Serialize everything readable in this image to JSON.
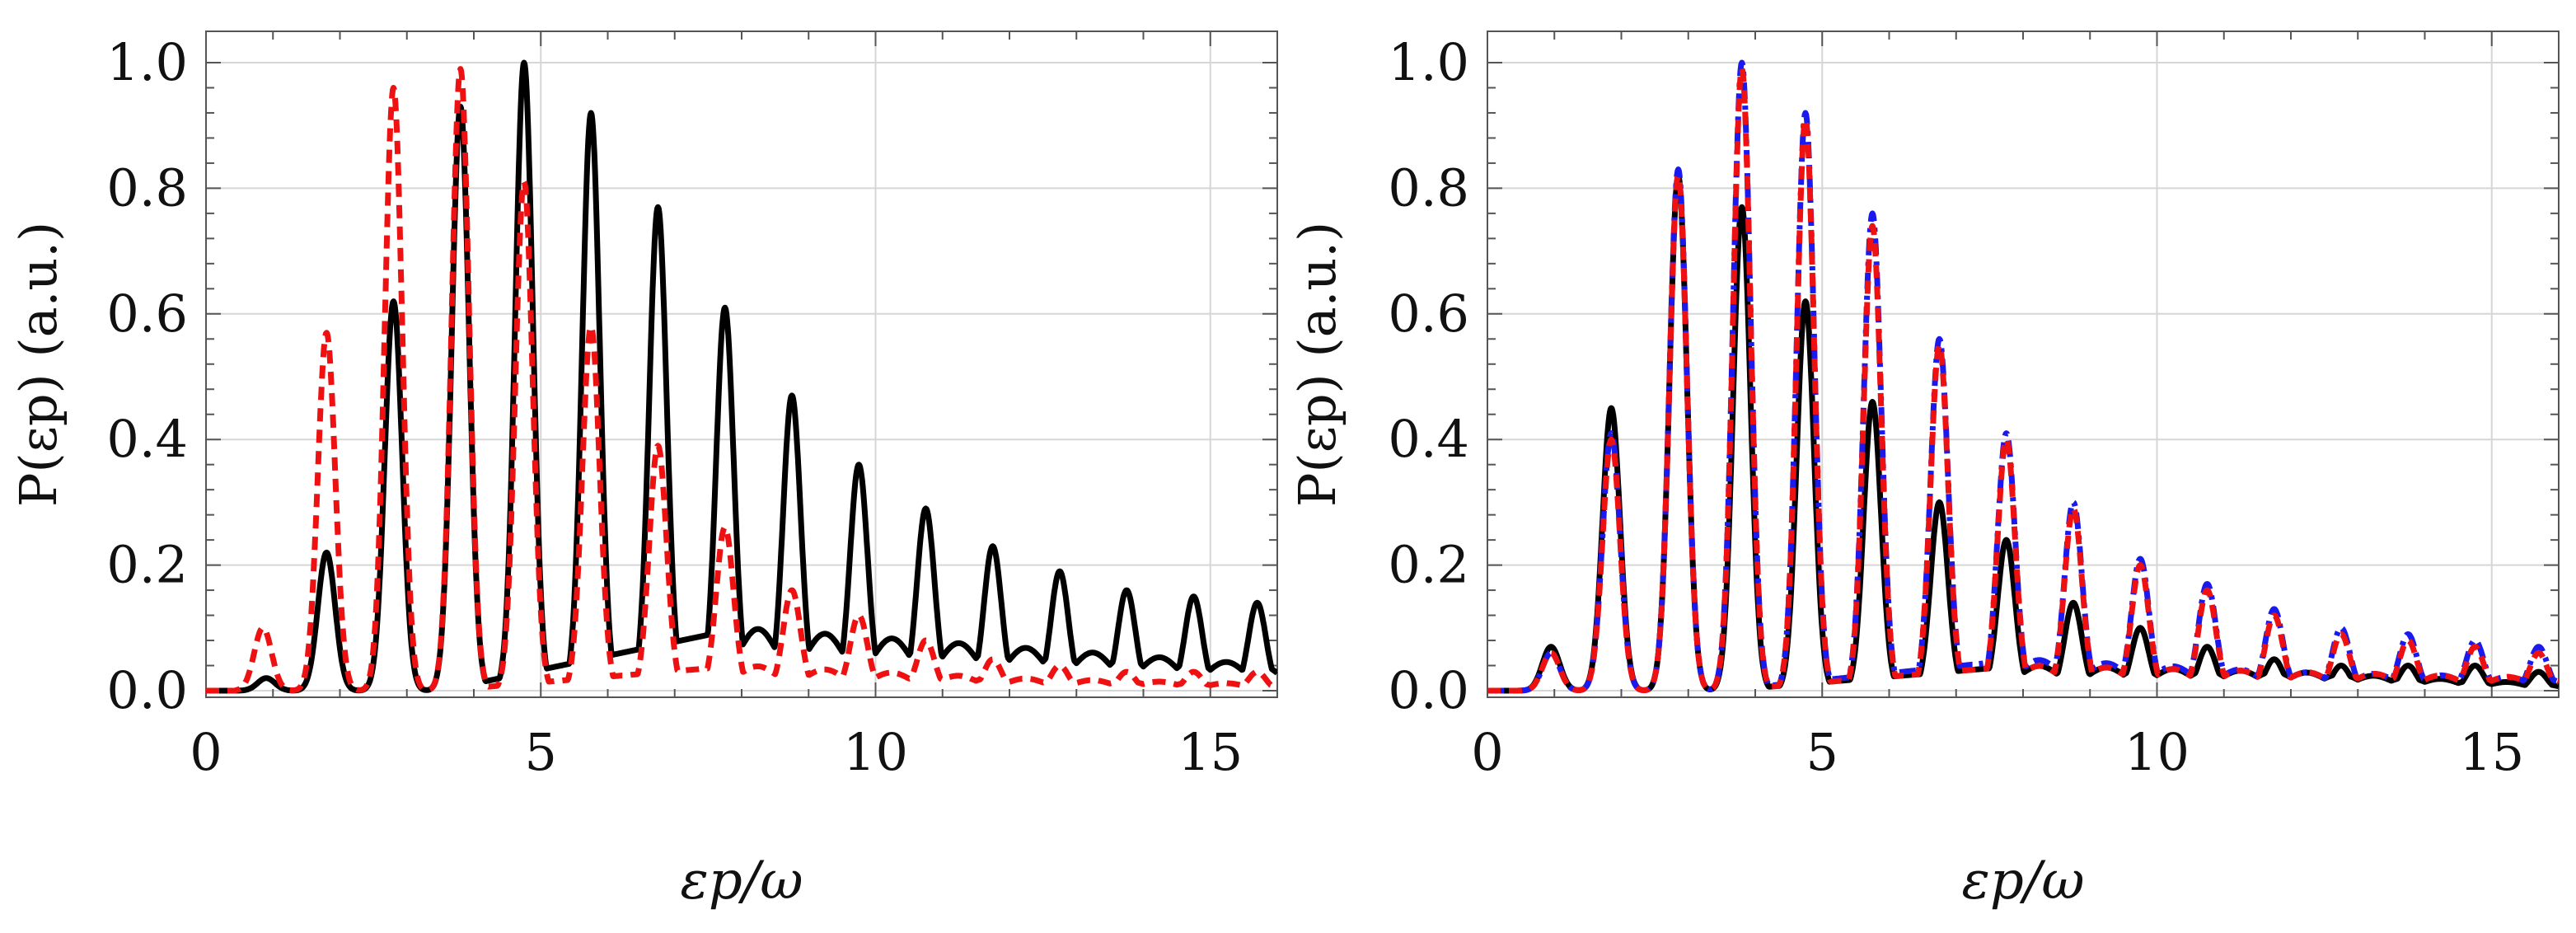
{
  "chart_data": [
    {
      "type": "line",
      "panel": "left",
      "xlabel": "εp/ω",
      "ylabel": "P(εp) (a.u.)",
      "xlim": [
        0,
        16
      ],
      "ylim": [
        0,
        1.0
      ],
      "xticks": [
        0,
        5,
        10,
        15
      ],
      "xtick_labels": [
        "0",
        "5",
        "10",
        "15"
      ],
      "yticks": [
        0.0,
        0.2,
        0.4,
        0.6,
        0.8,
        1.0
      ],
      "ytick_labels": [
        "0.0",
        "0.2",
        "0.4",
        "0.6",
        "0.8",
        "1.0"
      ],
      "grid": true,
      "series": [
        {
          "name": "solid-black",
          "color": "#000000",
          "dash": "solid",
          "peaks": [
            {
              "x": 0.9,
              "y": 0.02
            },
            {
              "x": 1.8,
              "y": 0.22
            },
            {
              "x": 2.8,
              "y": 0.62
            },
            {
              "x": 3.8,
              "y": 0.93
            },
            {
              "x": 4.75,
              "y": 1.0
            },
            {
              "x": 5.75,
              "y": 0.92
            },
            {
              "x": 6.75,
              "y": 0.77
            },
            {
              "x": 7.75,
              "y": 0.61
            },
            {
              "x": 8.75,
              "y": 0.47
            },
            {
              "x": 9.75,
              "y": 0.36
            },
            {
              "x": 10.75,
              "y": 0.29
            },
            {
              "x": 11.75,
              "y": 0.23
            },
            {
              "x": 12.75,
              "y": 0.19
            },
            {
              "x": 13.75,
              "y": 0.16
            },
            {
              "x": 14.75,
              "y": 0.15
            },
            {
              "x": 15.7,
              "y": 0.14
            }
          ],
          "floor": [
            {
              "x": 8.0,
              "y": 0.1
            },
            {
              "x": 12.0,
              "y": 0.07
            },
            {
              "x": 16.0,
              "y": 0.04
            }
          ]
        },
        {
          "name": "dashed-red",
          "color": "#ee1111",
          "dash": "dashed",
          "peaks": [
            {
              "x": 0.85,
              "y": 0.1
            },
            {
              "x": 1.8,
              "y": 0.57
            },
            {
              "x": 2.8,
              "y": 0.96
            },
            {
              "x": 3.8,
              "y": 0.99
            },
            {
              "x": 4.75,
              "y": 0.81
            },
            {
              "x": 5.75,
              "y": 0.58
            },
            {
              "x": 6.75,
              "y": 0.39
            },
            {
              "x": 7.75,
              "y": 0.26
            },
            {
              "x": 8.75,
              "y": 0.16
            },
            {
              "x": 9.75,
              "y": 0.12
            },
            {
              "x": 10.75,
              "y": 0.08
            },
            {
              "x": 11.75,
              "y": 0.05
            },
            {
              "x": 12.75,
              "y": 0.04
            },
            {
              "x": 13.75,
              "y": 0.03
            },
            {
              "x": 14.75,
              "y": 0.03
            },
            {
              "x": 15.7,
              "y": 0.03
            }
          ],
          "floor": [
            {
              "x": 8.0,
              "y": 0.04
            },
            {
              "x": 12.0,
              "y": 0.02
            },
            {
              "x": 16.0,
              "y": 0.01
            }
          ]
        }
      ]
    },
    {
      "type": "line",
      "panel": "right",
      "xlabel": "εp/ω",
      "ylabel": "P(εp) (a.u.)",
      "xlim": [
        0,
        16
      ],
      "ylim": [
        0,
        1.0
      ],
      "xticks": [
        0,
        5,
        10,
        15
      ],
      "xtick_labels": [
        "0",
        "5",
        "10",
        "15"
      ],
      "yticks": [
        0.0,
        0.2,
        0.4,
        0.6,
        0.8,
        1.0
      ],
      "ytick_labels": [
        "0.0",
        "0.2",
        "0.4",
        "0.6",
        "0.8",
        "1.0"
      ],
      "grid": true,
      "series": [
        {
          "name": "solid-black",
          "color": "#000000",
          "dash": "solid",
          "peaks": [
            {
              "x": 0.95,
              "y": 0.07
            },
            {
              "x": 1.85,
              "y": 0.45
            },
            {
              "x": 2.85,
              "y": 0.82
            },
            {
              "x": 3.8,
              "y": 0.77
            },
            {
              "x": 4.75,
              "y": 0.62
            },
            {
              "x": 5.75,
              "y": 0.46
            },
            {
              "x": 6.75,
              "y": 0.3
            },
            {
              "x": 7.75,
              "y": 0.24
            },
            {
              "x": 8.75,
              "y": 0.14
            },
            {
              "x": 9.75,
              "y": 0.1
            },
            {
              "x": 10.75,
              "y": 0.07
            },
            {
              "x": 11.75,
              "y": 0.05
            },
            {
              "x": 12.75,
              "y": 0.04
            },
            {
              "x": 13.75,
              "y": 0.04
            },
            {
              "x": 14.75,
              "y": 0.04
            },
            {
              "x": 15.7,
              "y": 0.03
            }
          ],
          "floor": [
            {
              "x": 8.0,
              "y": 0.04
            },
            {
              "x": 12.0,
              "y": 0.03
            },
            {
              "x": 16.0,
              "y": 0.01
            }
          ]
        },
        {
          "name": "dash-dot-blue",
          "color": "#1a1aee",
          "dash": "dashdot",
          "peaks": [
            {
              "x": 0.95,
              "y": 0.06
            },
            {
              "x": 1.85,
              "y": 0.41
            },
            {
              "x": 2.85,
              "y": 0.83
            },
            {
              "x": 3.8,
              "y": 1.0
            },
            {
              "x": 4.75,
              "y": 0.92
            },
            {
              "x": 5.75,
              "y": 0.76
            },
            {
              "x": 6.75,
              "y": 0.56
            },
            {
              "x": 7.75,
              "y": 0.41
            },
            {
              "x": 8.75,
              "y": 0.3
            },
            {
              "x": 9.75,
              "y": 0.21
            },
            {
              "x": 10.75,
              "y": 0.17
            },
            {
              "x": 11.75,
              "y": 0.13
            },
            {
              "x": 12.75,
              "y": 0.1
            },
            {
              "x": 13.75,
              "y": 0.09
            },
            {
              "x": 14.75,
              "y": 0.08
            },
            {
              "x": 15.7,
              "y": 0.07
            }
          ],
          "floor": [
            {
              "x": 8.0,
              "y": 0.05
            },
            {
              "x": 12.0,
              "y": 0.03
            },
            {
              "x": 16.0,
              "y": 0.02
            }
          ]
        },
        {
          "name": "dashed-red",
          "color": "#ee1111",
          "dash": "dashed",
          "peaks": [
            {
              "x": 0.95,
              "y": 0.06
            },
            {
              "x": 1.85,
              "y": 0.4
            },
            {
              "x": 2.85,
              "y": 0.82
            },
            {
              "x": 3.8,
              "y": 0.99
            },
            {
              "x": 4.75,
              "y": 0.91
            },
            {
              "x": 5.75,
              "y": 0.74
            },
            {
              "x": 6.75,
              "y": 0.55
            },
            {
              "x": 7.75,
              "y": 0.4
            },
            {
              "x": 8.75,
              "y": 0.29
            },
            {
              "x": 9.75,
              "y": 0.2
            },
            {
              "x": 10.75,
              "y": 0.16
            },
            {
              "x": 11.75,
              "y": 0.12
            },
            {
              "x": 12.75,
              "y": 0.09
            },
            {
              "x": 13.75,
              "y": 0.08
            },
            {
              "x": 14.75,
              "y": 0.07
            },
            {
              "x": 15.7,
              "y": 0.06
            }
          ],
          "floor": [
            {
              "x": 8.0,
              "y": 0.04
            },
            {
              "x": 12.0,
              "y": 0.03
            },
            {
              "x": 16.0,
              "y": 0.02
            }
          ]
        }
      ]
    }
  ]
}
